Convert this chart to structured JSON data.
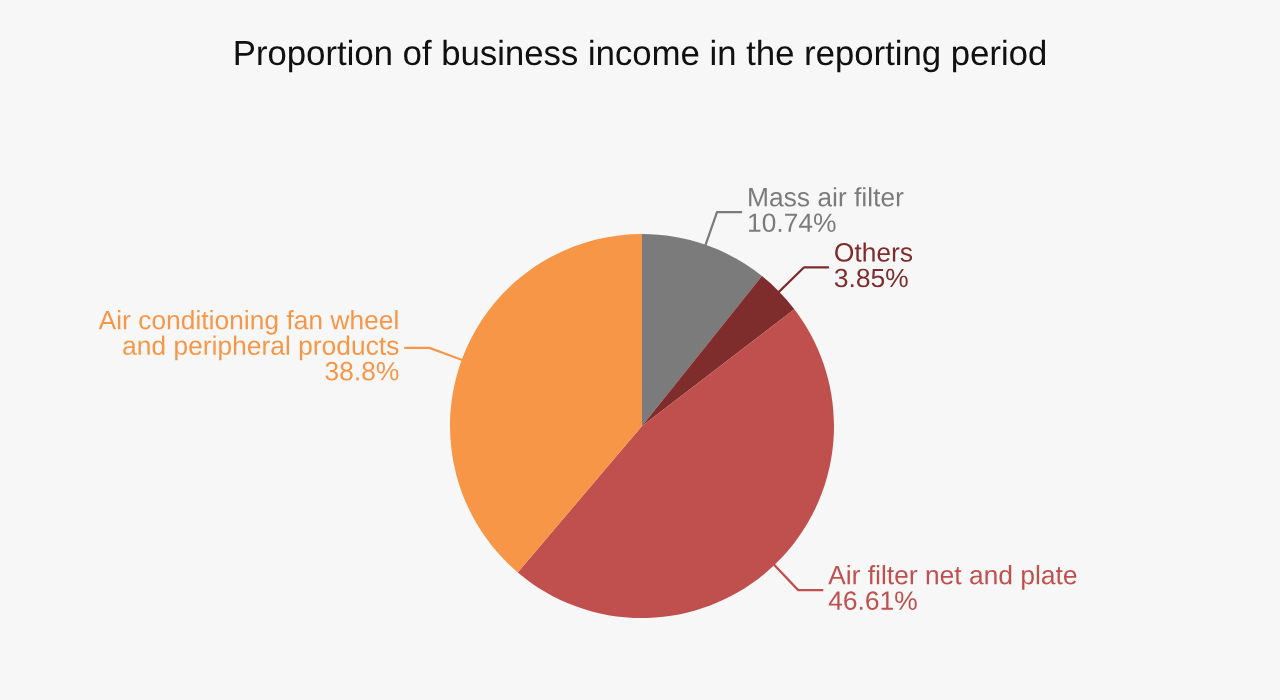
{
  "chart_data": {
    "type": "pie",
    "title": "Proportion of business income in the reporting period",
    "categories": [
      "Mass air filter",
      "Others",
      "Air filter net and plate",
      "Air conditioning fan wheel\nand peripheral products"
    ],
    "values": [
      10.74,
      3.85,
      46.61,
      38.8
    ],
    "colors": [
      "#7b7b7b",
      "#7f2c2c",
      "#c0504d",
      "#f79646"
    ],
    "value_labels": [
      "10.74%",
      "3.85%",
      "46.61%",
      "38.8%"
    ]
  }
}
